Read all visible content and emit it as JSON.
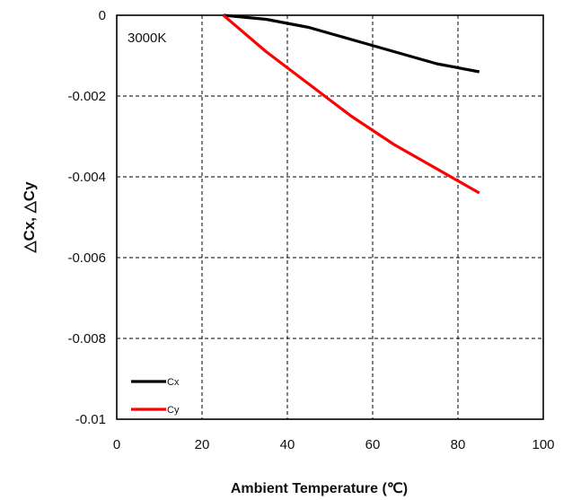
{
  "chart_data": {
    "type": "line",
    "annotation": "3000K",
    "xlabel": "Ambient Temperature (℃)",
    "ylabel": "△Cx, △Cy",
    "xlim": [
      0,
      100
    ],
    "ylim": [
      -0.01,
      0
    ],
    "x_ticks": [
      "0",
      "20",
      "40",
      "60",
      "80",
      "100"
    ],
    "y_ticks": [
      "0",
      "-0.002",
      "-0.004",
      "-0.006",
      "-0.008",
      "-0.01"
    ],
    "grid": true,
    "legend_position": "bottom-left",
    "series": [
      {
        "name": "Cx",
        "color": "#000000",
        "x": [
          25,
          35,
          45,
          55,
          65,
          75,
          85
        ],
        "y": [
          0,
          -0.0001,
          -0.0003,
          -0.0006,
          -0.0009,
          -0.0012,
          -0.0014
        ]
      },
      {
        "name": "Cy",
        "color": "#ff0000",
        "x": [
          25,
          35,
          45,
          55,
          65,
          75,
          85
        ],
        "y": [
          0,
          -0.0009,
          -0.0017,
          -0.0025,
          -0.0032,
          -0.0038,
          -0.0044
        ]
      }
    ]
  }
}
